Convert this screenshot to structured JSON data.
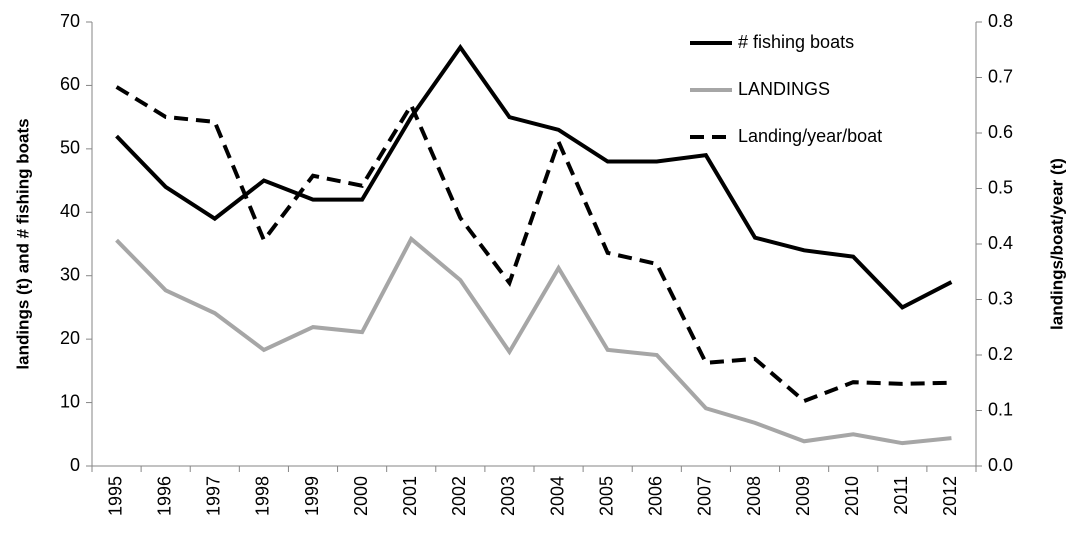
{
  "chart_data": {
    "type": "line",
    "categories": [
      "1995",
      "1996",
      "1997",
      "1998",
      "1999",
      "2000",
      "2001",
      "2002",
      "2003",
      "2004",
      "2005",
      "2006",
      "2007",
      "2008",
      "2009",
      "2010",
      "2011",
      "2012"
    ],
    "y_label": "landings (t) and # fishing boats",
    "y2_label": "landings/boat/year (t)",
    "ylim": [
      0,
      70
    ],
    "yticks": [
      0,
      10,
      20,
      30,
      40,
      50,
      60,
      70
    ],
    "y2lim": [
      0,
      0.8
    ],
    "y2ticks": [
      {
        "value": 0,
        "label": "0.0"
      },
      0.1,
      0.2,
      0.3,
      0.4,
      0.5,
      0.6,
      0.7,
      0.8
    ],
    "legend": "top-right",
    "series": [
      {
        "name": "# fishing boats",
        "color": "#000000",
        "dashed": false,
        "values": [
          52,
          44,
          39,
          45,
          42,
          42,
          55,
          66,
          55,
          53,
          48,
          48,
          49,
          36,
          34,
          33,
          25,
          29
        ]
      },
      {
        "name": "LANDINGS",
        "color": "#a6a6a6",
        "dashed": false,
        "values": [
          35.6,
          27.7,
          24.1,
          18.3,
          21.9,
          21.1,
          35.8,
          29.3,
          18.0,
          31.2,
          18.3,
          17.5,
          9.1,
          6.8,
          3.9,
          5.0,
          3.6,
          4.4
        ]
      },
      {
        "name": "Landing/year/boat",
        "color": "#000000",
        "dashed": true,
        "axis": "y2",
        "values": [
          0.683,
          0.629,
          0.62,
          0.407,
          0.523,
          0.505,
          0.65,
          0.447,
          0.33,
          0.584,
          0.384,
          0.364,
          0.186,
          0.193,
          0.117,
          0.151,
          0.148,
          0.15
        ]
      }
    ]
  }
}
